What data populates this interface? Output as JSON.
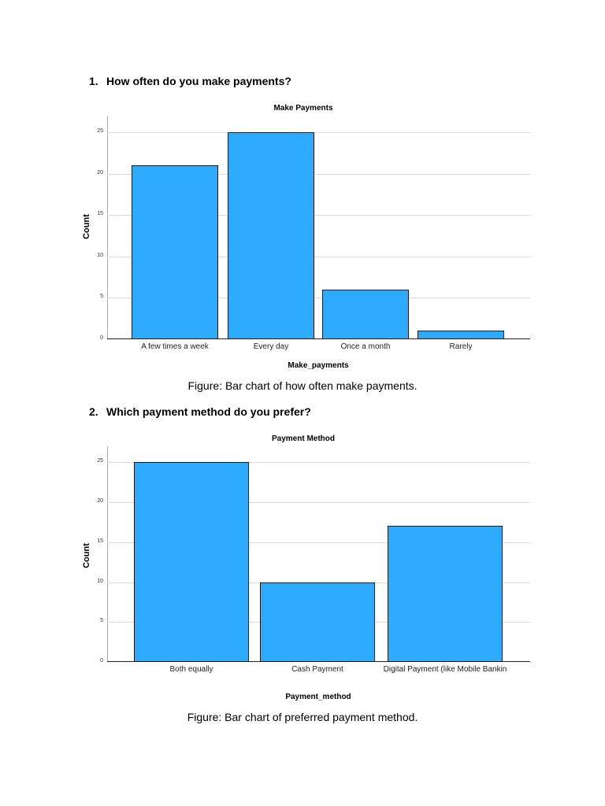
{
  "sections": [
    {
      "number": "1.",
      "question": "How often do you make payments?",
      "caption": "Figure: Bar chart of how often make payments."
    },
    {
      "number": "2.",
      "question": "Which payment method do you prefer?",
      "caption": "Figure: Bar chart of preferred payment method."
    }
  ],
  "chart_data": [
    {
      "type": "bar",
      "title": "Make Payments",
      "xlabel": "Make_payments",
      "ylabel": "Count",
      "categories": [
        "A few times a week",
        "Every day",
        "Once a month",
        "Rarely"
      ],
      "values": [
        21,
        25,
        6,
        1
      ],
      "yticks": [
        "0",
        "5",
        "10",
        "15",
        "20",
        "25"
      ],
      "ylim": [
        0,
        27
      ],
      "grid": true,
      "bar_color": "#2eaaff"
    },
    {
      "type": "bar",
      "title": "Payment Method",
      "xlabel": "Payment_method",
      "ylabel": "Count",
      "categories": [
        "Both equally",
        "Cash Payment",
        "Digital Payment (like Mobile Bankin"
      ],
      "values": [
        25,
        10,
        17
      ],
      "yticks": [
        "0",
        "5",
        "10",
        "15",
        "20",
        "25"
      ],
      "ylim": [
        0,
        27
      ],
      "grid": true,
      "bar_color": "#2eaaff"
    }
  ]
}
